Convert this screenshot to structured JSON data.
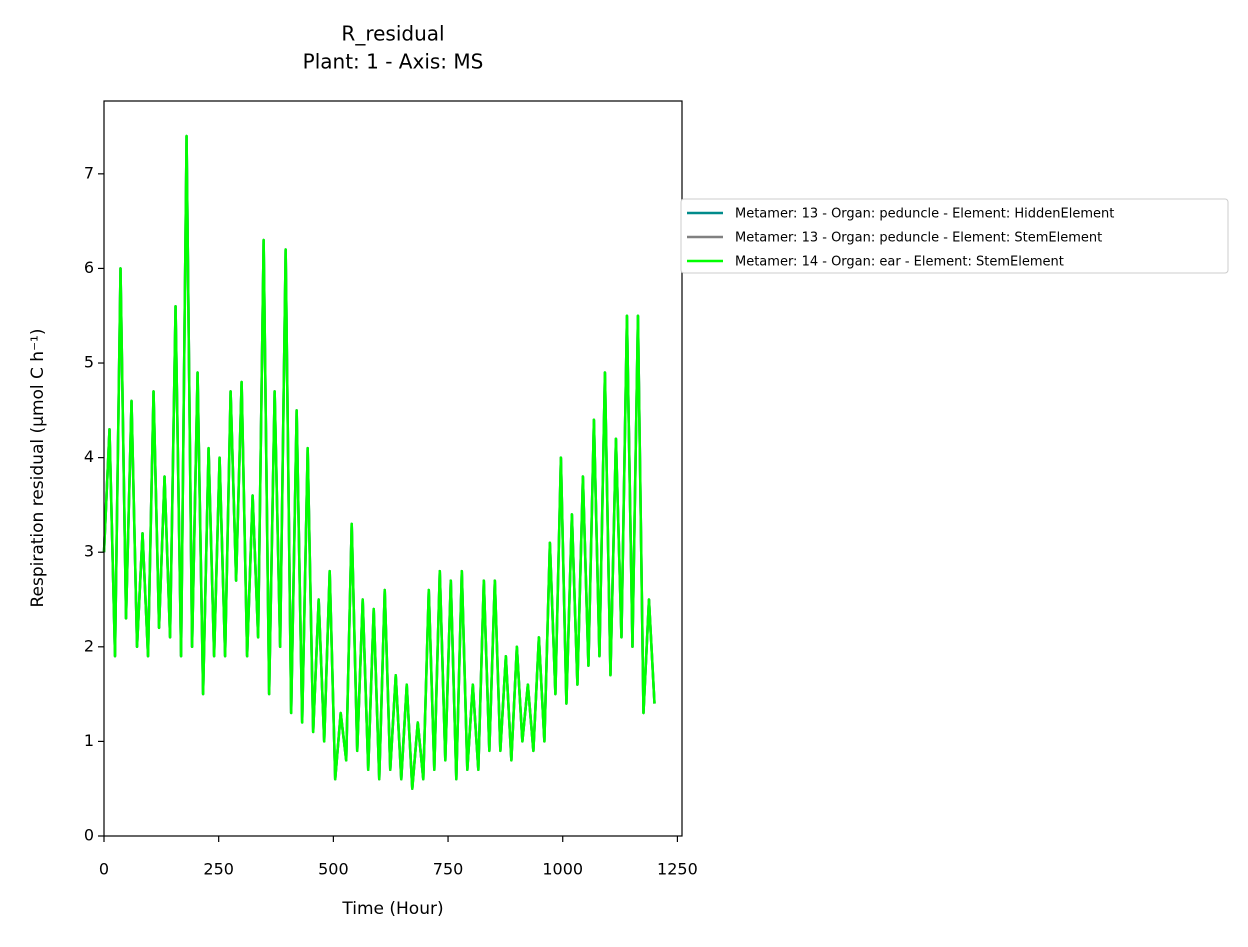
{
  "chart_data": {
    "type": "line",
    "title": "R_residual",
    "subtitle": "Plant: 1 - Axis: MS",
    "x_label": "Time (Hour)",
    "y_label": "Respiration residual (μmol C h⁻¹)",
    "xlim": [
      0,
      1260
    ],
    "xticks": [
      0,
      250,
      500,
      750,
      1000,
      1250
    ],
    "ylim": [
      0,
      7.77
    ],
    "yticks": [
      0,
      1,
      2,
      3,
      4,
      5,
      6,
      7
    ],
    "grid": false,
    "legend": "right",
    "x": [
      0,
      12,
      24,
      36,
      48,
      60,
      72,
      84,
      96,
      108,
      120,
      132,
      144,
      156,
      168,
      180,
      192,
      204,
      216,
      228,
      240,
      252,
      264,
      276,
      288,
      300,
      312,
      324,
      336,
      348,
      360,
      372,
      384,
      396,
      408,
      420,
      432,
      444,
      456,
      468,
      480,
      492,
      504,
      516,
      528,
      540,
      552,
      564,
      576,
      588,
      600,
      612,
      624,
      636,
      648,
      660,
      672,
      684,
      696,
      708,
      720,
      732,
      744,
      756,
      768,
      780,
      792,
      804,
      816,
      828,
      840,
      852,
      864,
      876,
      888,
      900,
      912,
      924,
      936,
      948,
      960,
      972,
      984,
      996,
      1008,
      1020,
      1032,
      1044,
      1056,
      1068,
      1080,
      1092,
      1104,
      1116,
      1128,
      1140,
      1152,
      1164,
      1176,
      1188,
      1200
    ],
    "series": [
      {
        "name": "Metamer: 13 - Organ: peduncle - Element: HiddenElement",
        "color": "#008b8b",
        "values": [
          3.0,
          4.3,
          1.9,
          6.0,
          2.3,
          4.6,
          2.0,
          3.2,
          1.9,
          4.7,
          2.2,
          3.8,
          2.1,
          5.6,
          1.9,
          7.4,
          2.0,
          4.9,
          1.5,
          4.1,
          1.9,
          4.0,
          1.9,
          4.7,
          2.7,
          4.8,
          1.9,
          3.6,
          2.1,
          6.3,
          1.5,
          4.7,
          2.0,
          6.2,
          1.3,
          4.5,
          1.2,
          4.1,
          1.1,
          2.5,
          1.0,
          2.8,
          0.6,
          1.3,
          0.8,
          3.3,
          0.9,
          2.5,
          0.7,
          2.4,
          0.6,
          2.6,
          0.7,
          1.7,
          0.6,
          1.6,
          0.5,
          1.2,
          0.6,
          2.6,
          0.7,
          2.8,
          0.8,
          2.7,
          0.6,
          2.8,
          0.7,
          1.6,
          0.7,
          2.7,
          0.9,
          2.7,
          0.9,
          1.9,
          0.8,
          2.0,
          1.0,
          1.6,
          0.9,
          2.1,
          1.0,
          3.1,
          1.5,
          4.0,
          1.4,
          3.4,
          1.6,
          3.8,
          1.8,
          4.4,
          1.9,
          4.9,
          1.7,
          4.2,
          2.1,
          5.5,
          2.0,
          5.5,
          1.3,
          2.5,
          1.4
        ]
      },
      {
        "name": "Metamer: 13 - Organ: peduncle - Element: StemElement",
        "color": "#808080",
        "values": [
          3.0,
          4.3,
          1.9,
          6.0,
          2.3,
          4.6,
          2.0,
          3.2,
          1.9,
          4.7,
          2.2,
          3.8,
          2.1,
          5.6,
          1.9,
          7.4,
          2.0,
          4.9,
          1.5,
          4.1,
          1.9,
          4.0,
          1.9,
          4.7,
          2.7,
          4.8,
          1.9,
          3.6,
          2.1,
          6.3,
          1.5,
          4.7,
          2.0,
          6.2,
          1.3,
          4.5,
          1.2,
          4.1,
          1.1,
          2.5,
          1.0,
          2.8,
          0.6,
          1.3,
          0.8,
          3.3,
          0.9,
          2.5,
          0.7,
          2.4,
          0.6,
          2.6,
          0.7,
          1.7,
          0.6,
          1.6,
          0.5,
          1.2,
          0.6,
          2.6,
          0.7,
          2.8,
          0.8,
          2.7,
          0.6,
          2.8,
          0.7,
          1.6,
          0.7,
          2.7,
          0.9,
          2.7,
          0.9,
          1.9,
          0.8,
          2.0,
          1.0,
          1.6,
          0.9,
          2.1,
          1.0,
          3.1,
          1.5,
          4.0,
          1.4,
          3.4,
          1.6,
          3.8,
          1.8,
          4.4,
          1.9,
          4.9,
          1.7,
          4.2,
          2.1,
          5.5,
          2.0,
          5.5,
          1.3,
          2.5,
          1.4
        ]
      },
      {
        "name": "Metamer: 14 - Organ: ear - Element: StemElement",
        "color": "#00ff00",
        "values": [
          3.0,
          4.3,
          1.9,
          6.0,
          2.3,
          4.6,
          2.0,
          3.2,
          1.9,
          4.7,
          2.2,
          3.8,
          2.1,
          5.6,
          1.9,
          7.4,
          2.0,
          4.9,
          1.5,
          4.1,
          1.9,
          4.0,
          1.9,
          4.7,
          2.7,
          4.8,
          1.9,
          3.6,
          2.1,
          6.3,
          1.5,
          4.7,
          2.0,
          6.2,
          1.3,
          4.5,
          1.2,
          4.1,
          1.1,
          2.5,
          1.0,
          2.8,
          0.6,
          1.3,
          0.8,
          3.3,
          0.9,
          2.5,
          0.7,
          2.4,
          0.6,
          2.6,
          0.7,
          1.7,
          0.6,
          1.6,
          0.5,
          1.2,
          0.6,
          2.6,
          0.7,
          2.8,
          0.8,
          2.7,
          0.6,
          2.8,
          0.7,
          1.6,
          0.7,
          2.7,
          0.9,
          2.7,
          0.9,
          1.9,
          0.8,
          2.0,
          1.0,
          1.6,
          0.9,
          2.1,
          1.0,
          3.1,
          1.5,
          4.0,
          1.4,
          3.4,
          1.6,
          3.8,
          1.8,
          4.4,
          1.9,
          4.9,
          1.7,
          4.2,
          2.1,
          5.5,
          2.0,
          5.5,
          1.3,
          2.5,
          1.4
        ]
      }
    ]
  }
}
